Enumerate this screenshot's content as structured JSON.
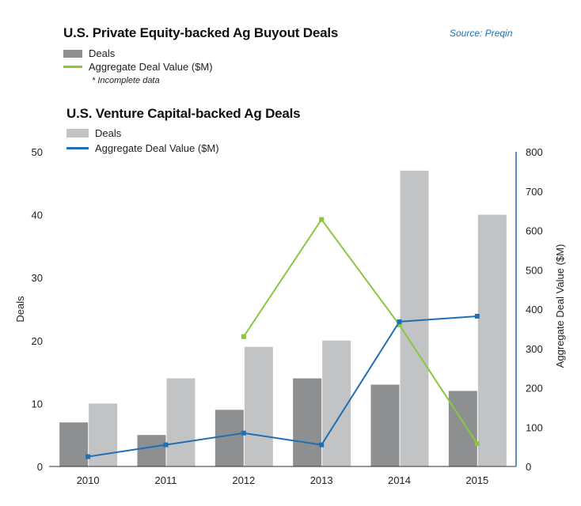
{
  "source": "Source: Preqin",
  "pe_section": {
    "title": "U.S. Private Equity-backed Ag Buyout Deals",
    "legend_deals": "Deals",
    "legend_value": "Aggregate Deal Value ($M)",
    "note": "* Incomplete data"
  },
  "vc_section": {
    "title": "U.S. Venture Capital-backed Ag Deals",
    "legend_deals": "Deals",
    "legend_value": "Aggregate Deal Value ($M)"
  },
  "colors": {
    "pe_bar": "#8e8f91",
    "vc_bar": "#c2c3c5",
    "pe_line": "#8cc63f",
    "vc_line": "#1f6fb4"
  },
  "chart_data": {
    "type": "bar",
    "categories": [
      "2010",
      "2011",
      "2012",
      "2013",
      "2014",
      "2015"
    ],
    "xlabel": "",
    "ylabel": "Deals",
    "y2label": "Aggregate Deal Value ($M)",
    "ylim": [
      0,
      50
    ],
    "y2lim": [
      0,
      800
    ],
    "yticks": [
      0,
      10,
      20,
      30,
      40,
      50
    ],
    "y2ticks": [
      0,
      100,
      200,
      300,
      400,
      500,
      600,
      700,
      800
    ],
    "series": [
      {
        "name": "Deals",
        "kind": "bar",
        "axis": "left",
        "group": "pe",
        "values": [
          7,
          5,
          9,
          14,
          13,
          12
        ]
      },
      {
        "name": "Deals",
        "kind": "bar",
        "axis": "left",
        "group": "vc",
        "values": [
          10,
          14,
          19,
          20,
          47,
          40
        ]
      },
      {
        "name": "Aggregate Deal Value ($M)",
        "kind": "line",
        "axis": "right",
        "group": "pe",
        "values": [
          null,
          null,
          330,
          628,
          360,
          58
        ]
      },
      {
        "name": "Aggregate Deal Value ($M)",
        "kind": "line",
        "axis": "right",
        "group": "vc",
        "values": [
          25,
          55,
          85,
          55,
          368,
          382
        ]
      }
    ],
    "grid": false,
    "legend_position": "top-left"
  }
}
